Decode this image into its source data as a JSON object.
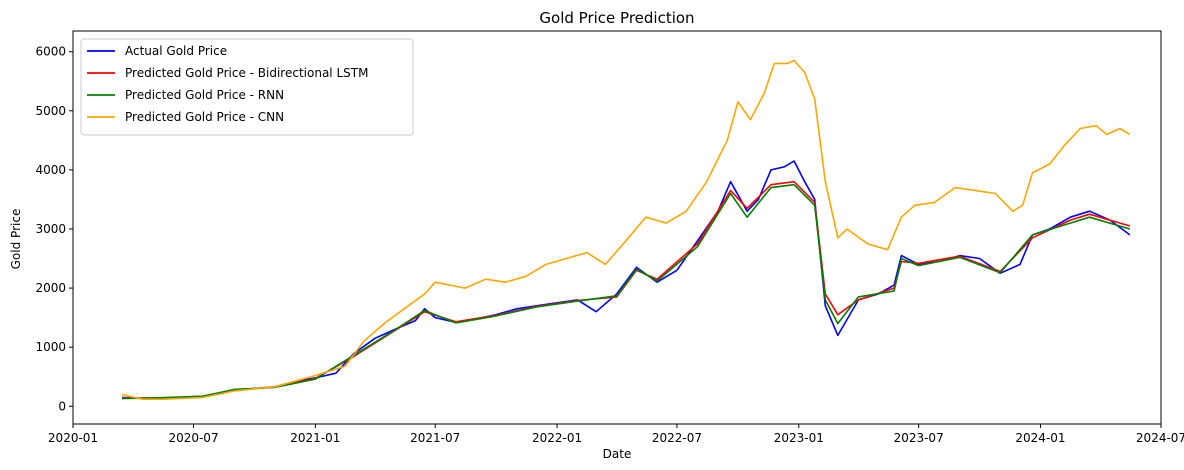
{
  "chart_data": {
    "type": "line",
    "title": "Gold Price Prediction",
    "xlabel": "Date",
    "ylabel": "Gold Price",
    "xlim": [
      "2020-01-01",
      "2024-07-01"
    ],
    "ylim": [
      -300,
      6350
    ],
    "x_ticks": [
      "2020-01",
      "2020-07",
      "2021-01",
      "2021-07",
      "2022-01",
      "2022-07",
      "2023-01",
      "2023-07",
      "2024-01",
      "2024-07"
    ],
    "y_ticks": [
      0,
      1000,
      2000,
      3000,
      4000,
      5000,
      6000
    ],
    "grid": false,
    "legend_position": "top-left",
    "series": [
      {
        "name": "Actual Gold Price",
        "color": "#0000ff",
        "points": [
          [
            "2020-03-15",
            150
          ],
          [
            "2020-04-15",
            130
          ],
          [
            "2020-05-15",
            140
          ],
          [
            "2020-06-15",
            150
          ],
          [
            "2020-07-15",
            165
          ],
          [
            "2020-08-15",
            220
          ],
          [
            "2020-09-01",
            280
          ],
          [
            "2020-10-01",
            300
          ],
          [
            "2020-11-01",
            330
          ],
          [
            "2020-12-01",
            420
          ],
          [
            "2021-01-01",
            480
          ],
          [
            "2021-02-01",
            560
          ],
          [
            "2021-03-01",
            900
          ],
          [
            "2021-04-01",
            1150
          ],
          [
            "2021-05-01",
            1300
          ],
          [
            "2021-06-01",
            1450
          ],
          [
            "2021-06-15",
            1650
          ],
          [
            "2021-07-01",
            1500
          ],
          [
            "2021-08-01",
            1420
          ],
          [
            "2021-09-01",
            1480
          ],
          [
            "2021-10-01",
            1550
          ],
          [
            "2021-11-01",
            1650
          ],
          [
            "2021-12-01",
            1700
          ],
          [
            "2022-01-01",
            1750
          ],
          [
            "2022-02-01",
            1800
          ],
          [
            "2022-03-01",
            1600
          ],
          [
            "2022-04-01",
            1900
          ],
          [
            "2022-05-01",
            2350
          ],
          [
            "2022-06-01",
            2100
          ],
          [
            "2022-07-01",
            2300
          ],
          [
            "2022-08-01",
            2800
          ],
          [
            "2022-09-01",
            3300
          ],
          [
            "2022-09-20",
            3800
          ],
          [
            "2022-10-15",
            3300
          ],
          [
            "2022-11-01",
            3500
          ],
          [
            "2022-11-20",
            4000
          ],
          [
            "2022-12-10",
            4050
          ],
          [
            "2022-12-25",
            4150
          ],
          [
            "2023-01-10",
            3800
          ],
          [
            "2023-01-25",
            3500
          ],
          [
            "2023-02-10",
            1700
          ],
          [
            "2023-03-01",
            1200
          ],
          [
            "2023-04-01",
            1800
          ],
          [
            "2023-05-01",
            1900
          ],
          [
            "2023-05-25",
            2050
          ],
          [
            "2023-06-05",
            2550
          ],
          [
            "2023-07-01",
            2400
          ],
          [
            "2023-08-01",
            2450
          ],
          [
            "2023-09-01",
            2550
          ],
          [
            "2023-10-01",
            2500
          ],
          [
            "2023-11-01",
            2250
          ],
          [
            "2023-12-01",
            2400
          ],
          [
            "2023-12-20",
            2900
          ],
          [
            "2024-01-15",
            3000
          ],
          [
            "2024-02-15",
            3200
          ],
          [
            "2024-03-15",
            3300
          ],
          [
            "2024-04-15",
            3150
          ],
          [
            "2024-05-15",
            2900
          ]
        ]
      },
      {
        "name": "Predicted Gold Price - Bidirectional LSTM",
        "color": "#ff0000",
        "points": [
          [
            "2020-03-15",
            140
          ],
          [
            "2020-05-15",
            140
          ],
          [
            "2020-07-15",
            165
          ],
          [
            "2020-09-01",
            270
          ],
          [
            "2020-11-01",
            330
          ],
          [
            "2021-01-01",
            470
          ],
          [
            "2021-03-01",
            850
          ],
          [
            "2021-05-01",
            1280
          ],
          [
            "2021-06-15",
            1600
          ],
          [
            "2021-08-01",
            1430
          ],
          [
            "2021-10-01",
            1540
          ],
          [
            "2021-12-01",
            1690
          ],
          [
            "2022-02-01",
            1790
          ],
          [
            "2022-04-01",
            1850
          ],
          [
            "2022-05-01",
            2300
          ],
          [
            "2022-06-01",
            2150
          ],
          [
            "2022-08-01",
            2750
          ],
          [
            "2022-09-20",
            3650
          ],
          [
            "2022-10-15",
            3350
          ],
          [
            "2022-11-20",
            3750
          ],
          [
            "2022-12-25",
            3800
          ],
          [
            "2023-01-25",
            3450
          ],
          [
            "2023-02-10",
            1900
          ],
          [
            "2023-03-01",
            1550
          ],
          [
            "2023-04-01",
            1800
          ],
          [
            "2023-05-25",
            2000
          ],
          [
            "2023-06-05",
            2450
          ],
          [
            "2023-07-01",
            2420
          ],
          [
            "2023-09-01",
            2540
          ],
          [
            "2023-11-01",
            2280
          ],
          [
            "2023-12-20",
            2850
          ],
          [
            "2024-02-15",
            3150
          ],
          [
            "2024-03-15",
            3250
          ],
          [
            "2024-05-15",
            3050
          ]
        ]
      },
      {
        "name": "Predicted Gold Price - RNN",
        "color": "#008000",
        "points": [
          [
            "2020-03-15",
            130
          ],
          [
            "2020-05-15",
            145
          ],
          [
            "2020-07-15",
            170
          ],
          [
            "2020-09-01",
            285
          ],
          [
            "2020-11-01",
            320
          ],
          [
            "2021-01-01",
            460
          ],
          [
            "2021-03-01",
            870
          ],
          [
            "2021-05-01",
            1290
          ],
          [
            "2021-06-15",
            1620
          ],
          [
            "2021-08-01",
            1410
          ],
          [
            "2021-10-01",
            1530
          ],
          [
            "2021-12-01",
            1680
          ],
          [
            "2022-02-01",
            1780
          ],
          [
            "2022-04-01",
            1870
          ],
          [
            "2022-05-01",
            2320
          ],
          [
            "2022-06-01",
            2120
          ],
          [
            "2022-08-01",
            2700
          ],
          [
            "2022-09-20",
            3600
          ],
          [
            "2022-10-15",
            3200
          ],
          [
            "2022-11-20",
            3700
          ],
          [
            "2022-12-25",
            3750
          ],
          [
            "2023-01-25",
            3400
          ],
          [
            "2023-02-10",
            1800
          ],
          [
            "2023-03-01",
            1400
          ],
          [
            "2023-04-01",
            1850
          ],
          [
            "2023-05-25",
            1950
          ],
          [
            "2023-06-05",
            2500
          ],
          [
            "2023-07-01",
            2380
          ],
          [
            "2023-09-01",
            2520
          ],
          [
            "2023-11-01",
            2260
          ],
          [
            "2023-12-20",
            2900
          ],
          [
            "2024-02-15",
            3100
          ],
          [
            "2024-03-15",
            3200
          ],
          [
            "2024-05-15",
            3000
          ]
        ]
      },
      {
        "name": "Predicted Gold Price - CNN",
        "color": "#ffa500",
        "points": [
          [
            "2020-03-15",
            200
          ],
          [
            "2020-04-15",
            120
          ],
          [
            "2020-05-15",
            120
          ],
          [
            "2020-07-15",
            150
          ],
          [
            "2020-09-01",
            260
          ],
          [
            "2020-11-01",
            330
          ],
          [
            "2021-01-01",
            520
          ],
          [
            "2021-02-15",
            680
          ],
          [
            "2021-03-15",
            1100
          ],
          [
            "2021-04-15",
            1400
          ],
          [
            "2021-05-15",
            1650
          ],
          [
            "2021-06-15",
            1900
          ],
          [
            "2021-07-01",
            2100
          ],
          [
            "2021-08-15",
            2000
          ],
          [
            "2021-09-15",
            2150
          ],
          [
            "2021-10-15",
            2100
          ],
          [
            "2021-11-15",
            2200
          ],
          [
            "2021-12-15",
            2400
          ],
          [
            "2022-01-15",
            2500
          ],
          [
            "2022-02-15",
            2600
          ],
          [
            "2022-03-15",
            2400
          ],
          [
            "2022-04-15",
            2800
          ],
          [
            "2022-05-15",
            3200
          ],
          [
            "2022-06-15",
            3100
          ],
          [
            "2022-07-15",
            3300
          ],
          [
            "2022-08-15",
            3800
          ],
          [
            "2022-09-15",
            4500
          ],
          [
            "2022-10-01",
            5150
          ],
          [
            "2022-10-20",
            4850
          ],
          [
            "2022-11-10",
            5300
          ],
          [
            "2022-11-25",
            5800
          ],
          [
            "2022-12-15",
            5800
          ],
          [
            "2022-12-25",
            5850
          ],
          [
            "2023-01-10",
            5650
          ],
          [
            "2023-01-25",
            5200
          ],
          [
            "2023-02-10",
            3800
          ],
          [
            "2023-03-01",
            2850
          ],
          [
            "2023-03-15",
            3000
          ],
          [
            "2023-04-15",
            2750
          ],
          [
            "2023-05-15",
            2650
          ],
          [
            "2023-06-05",
            3200
          ],
          [
            "2023-06-25",
            3400
          ],
          [
            "2023-07-25",
            3450
          ],
          [
            "2023-08-25",
            3700
          ],
          [
            "2023-09-25",
            3650
          ],
          [
            "2023-10-25",
            3600
          ],
          [
            "2023-11-20",
            3300
          ],
          [
            "2023-12-05",
            3400
          ],
          [
            "2023-12-20",
            3950
          ],
          [
            "2024-01-15",
            4100
          ],
          [
            "2024-02-05",
            4400
          ],
          [
            "2024-03-01",
            4700
          ],
          [
            "2024-03-25",
            4750
          ],
          [
            "2024-04-10",
            4600
          ],
          [
            "2024-04-30",
            4700
          ],
          [
            "2024-05-15",
            4600
          ]
        ]
      }
    ]
  }
}
